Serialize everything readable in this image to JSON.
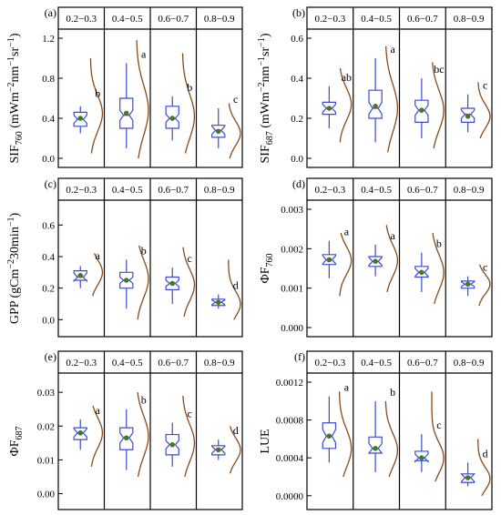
{
  "chart_data": [
    {
      "panel": "(a)",
      "type": "boxplot",
      "ylabel": {
        "main": "SIF",
        "sub": "760",
        "rest": " (mWm",
        "sup1": "−2",
        "mid": "nm",
        "sup2": "−1",
        "end": "sr",
        "sup3": "−1",
        "close": ")"
      },
      "ylim": [
        0.0,
        1.2
      ],
      "yticks": [
        0.0,
        0.4,
        0.8,
        1.2
      ],
      "tick_labels": [
        "0.0",
        "0.4",
        "0.8",
        "1.2"
      ],
      "groups": [
        "0.2−0.3",
        "0.4−0.5",
        "0.6−0.7",
        "0.8−0.9"
      ],
      "letters": [
        "b",
        "a",
        "b",
        "c"
      ],
      "stats": [
        {
          "min": 0.25,
          "q1": 0.32,
          "median": 0.39,
          "q3": 0.46,
          "max": 0.52,
          "mean": 0.4,
          "notch": 0.04
        },
        {
          "min": 0.1,
          "q1": 0.3,
          "median": 0.43,
          "q3": 0.6,
          "max": 0.95,
          "mean": 0.45,
          "notch": 0.05
        },
        {
          "min": 0.18,
          "q1": 0.3,
          "median": 0.4,
          "q3": 0.52,
          "max": 0.62,
          "mean": 0.4,
          "notch": 0.04
        },
        {
          "min": 0.1,
          "q1": 0.21,
          "median": 0.28,
          "q3": 0.33,
          "max": 0.5,
          "mean": 0.27,
          "notch": 0.04
        }
      ],
      "density": [
        {
          "from": 0.05,
          "to": 1.0,
          "mode": 0.45,
          "spread": 0.18
        },
        {
          "from": 0.0,
          "to": 1.18,
          "mode": 0.48,
          "spread": 0.25
        },
        {
          "from": 0.05,
          "to": 1.05,
          "mode": 0.42,
          "spread": 0.22
        },
        {
          "from": 0.0,
          "to": 0.55,
          "mode": 0.25,
          "spread": 0.12
        }
      ]
    },
    {
      "panel": "(b)",
      "type": "boxplot",
      "ylabel": {
        "main": "SIF",
        "sub": "687",
        "rest": " (mWm",
        "sup1": "−2",
        "mid": "nm",
        "sup2": "−1",
        "end": "sr",
        "sup3": "−1",
        "close": ")"
      },
      "ylim": [
        0.0,
        0.6
      ],
      "yticks": [
        0.0,
        0.2,
        0.4,
        0.6
      ],
      "tick_labels": [
        "0.0",
        "0.2",
        "0.4",
        "0.6"
      ],
      "groups": [
        "0.2−0.3",
        "0.4−0.5",
        "0.6−0.7",
        "0.8−0.9"
      ],
      "letters": [
        "ab",
        "a",
        "bc",
        "c"
      ],
      "stats": [
        {
          "min": 0.15,
          "q1": 0.22,
          "median": 0.25,
          "q3": 0.28,
          "max": 0.36,
          "mean": 0.25,
          "notch": 0.02
        },
        {
          "min": 0.08,
          "q1": 0.2,
          "median": 0.25,
          "q3": 0.34,
          "max": 0.5,
          "mean": 0.26,
          "notch": 0.03
        },
        {
          "min": 0.1,
          "q1": 0.18,
          "median": 0.24,
          "q3": 0.29,
          "max": 0.4,
          "mean": 0.24,
          "notch": 0.025
        },
        {
          "min": 0.13,
          "q1": 0.18,
          "median": 0.22,
          "q3": 0.25,
          "max": 0.32,
          "mean": 0.21,
          "notch": 0.02
        }
      ],
      "density": [
        {
          "from": 0.08,
          "to": 0.45,
          "mode": 0.27,
          "spread": 0.08
        },
        {
          "from": 0.03,
          "to": 0.56,
          "mode": 0.25,
          "spread": 0.12
        },
        {
          "from": 0.05,
          "to": 0.48,
          "mode": 0.24,
          "spread": 0.1
        },
        {
          "from": 0.1,
          "to": 0.38,
          "mode": 0.21,
          "spread": 0.06
        }
      ]
    },
    {
      "panel": "(c)",
      "type": "boxplot",
      "ylabel": {
        "main": "GPP (gCm",
        "sup1": "−2",
        "mid": "30min",
        "sup2": "−1",
        "close": ")"
      },
      "ylim": [
        -0.05,
        0.7
      ],
      "yticks": [
        0.0,
        0.2,
        0.4,
        0.6
      ],
      "tick_labels": [
        "0.0",
        "0.2",
        "0.4",
        "0.6"
      ],
      "groups": [
        "0.2−0.3",
        "0.4−0.5",
        "0.6−0.7",
        "0.8−0.9"
      ],
      "letters": [
        "a",
        "b",
        "c",
        "d"
      ],
      "stats": [
        {
          "min": 0.2,
          "q1": 0.25,
          "median": 0.27,
          "q3": 0.31,
          "max": 0.34,
          "mean": 0.28,
          "notch": 0.025
        },
        {
          "min": 0.07,
          "q1": 0.2,
          "median": 0.25,
          "q3": 0.3,
          "max": 0.38,
          "mean": 0.25,
          "notch": 0.02
        },
        {
          "min": 0.1,
          "q1": 0.19,
          "median": 0.23,
          "q3": 0.27,
          "max": 0.33,
          "mean": 0.23,
          "notch": 0.02
        },
        {
          "min": 0.07,
          "q1": 0.09,
          "median": 0.11,
          "q3": 0.13,
          "max": 0.16,
          "mean": 0.11,
          "notch": 0.015
        }
      ],
      "density": [
        {
          "from": 0.15,
          "to": 0.42,
          "mode": 0.3,
          "spread": 0.08
        },
        {
          "from": 0.0,
          "to": 0.47,
          "mode": 0.26,
          "spread": 0.12
        },
        {
          "from": 0.02,
          "to": 0.46,
          "mode": 0.22,
          "spread": 0.1
        },
        {
          "from": 0.0,
          "to": 0.38,
          "mode": 0.1,
          "spread": 0.08
        }
      ]
    },
    {
      "panel": "(d)",
      "type": "boxplot",
      "ylabel": {
        "main": "ΦF",
        "sub": "760"
      },
      "ylim": [
        0.0,
        0.003
      ],
      "yticks": [
        0.0,
        0.001,
        0.002,
        0.003
      ],
      "tick_labels": [
        "0.000",
        "0.001",
        "0.002",
        "0.003"
      ],
      "groups": [
        "0.2−0.3",
        "0.4−0.5",
        "0.6−0.7",
        "0.8−0.9"
      ],
      "letters": [
        "a",
        "a",
        "b",
        "c"
      ],
      "stats": [
        {
          "min": 0.00125,
          "q1": 0.0016,
          "median": 0.00172,
          "q3": 0.00185,
          "max": 0.0022,
          "mean": 0.00172,
          "notch": 0.0001
        },
        {
          "min": 0.0013,
          "q1": 0.00155,
          "median": 0.00168,
          "q3": 0.0018,
          "max": 0.0021,
          "mean": 0.00168,
          "notch": 0.0001
        },
        {
          "min": 0.0009,
          "q1": 0.00128,
          "median": 0.0014,
          "q3": 0.00155,
          "max": 0.0019,
          "mean": 0.0014,
          "notch": 0.0001
        },
        {
          "min": 0.0008,
          "q1": 0.001,
          "median": 0.0011,
          "q3": 0.00118,
          "max": 0.0013,
          "mean": 0.0011,
          "notch": 6e-05
        }
      ],
      "density": [
        {
          "from": 0.0008,
          "to": 0.0024,
          "mode": 0.0017,
          "spread": 0.00035
        },
        {
          "from": 0.0009,
          "to": 0.0026,
          "mode": 0.0017,
          "spread": 0.0004
        },
        {
          "from": 0.0006,
          "to": 0.0024,
          "mode": 0.0014,
          "spread": 0.00045
        },
        {
          "from": 0.00055,
          "to": 0.0016,
          "mode": 0.0011,
          "spread": 0.00025
        }
      ]
    },
    {
      "panel": "(e)",
      "type": "boxplot",
      "ylabel": {
        "main": "ΦF",
        "sub": "687"
      },
      "ylim": [
        -0.002,
        0.033
      ],
      "yticks": [
        0.0,
        0.01,
        0.02,
        0.03
      ],
      "tick_labels": [
        "0.00",
        "0.01",
        "0.02",
        "0.03"
      ],
      "groups": [
        "0.2−0.3",
        "0.4−0.5",
        "0.6−0.7",
        "0.8−0.9"
      ],
      "letters": [
        "a",
        "b",
        "c",
        "d"
      ],
      "stats": [
        {
          "min": 0.013,
          "q1": 0.016,
          "median": 0.018,
          "q3": 0.0195,
          "max": 0.022,
          "mean": 0.018,
          "notch": 0.0012
        },
        {
          "min": 0.007,
          "q1": 0.013,
          "median": 0.0165,
          "q3": 0.0195,
          "max": 0.025,
          "mean": 0.0165,
          "notch": 0.0015
        },
        {
          "min": 0.008,
          "q1": 0.0115,
          "median": 0.0145,
          "q3": 0.0175,
          "max": 0.021,
          "mean": 0.0145,
          "notch": 0.0012
        },
        {
          "min": 0.01,
          "q1": 0.0115,
          "median": 0.013,
          "q3": 0.0142,
          "max": 0.016,
          "mean": 0.013,
          "notch": 0.001
        }
      ],
      "density": [
        {
          "from": 0.008,
          "to": 0.026,
          "mode": 0.018,
          "spread": 0.0045
        },
        {
          "from": 0.005,
          "to": 0.03,
          "mode": 0.017,
          "spread": 0.006
        },
        {
          "from": 0.005,
          "to": 0.029,
          "mode": 0.015,
          "spread": 0.0055
        },
        {
          "from": 0.006,
          "to": 0.02,
          "mode": 0.013,
          "spread": 0.0035
        }
      ]
    },
    {
      "panel": "(f)",
      "type": "boxplot",
      "ylabel": {
        "main": "LUE"
      },
      "ylim": [
        -5e-05,
        0.0012
      ],
      "yticks": [
        0.0,
        0.0004,
        0.0008,
        0.0012
      ],
      "tick_labels": [
        "0.0000",
        "0.0004",
        "0.0008",
        "0.0012"
      ],
      "groups": [
        "0.2−0.3",
        "0.4−0.5",
        "0.6−0.7",
        "0.8−0.9"
      ],
      "letters": [
        "a",
        "b",
        "c",
        "d"
      ],
      "stats": [
        {
          "min": 0.00035,
          "q1": 0.0005,
          "median": 0.00063,
          "q3": 0.00077,
          "max": 0.00105,
          "mean": 0.00063,
          "notch": 7e-05
        },
        {
          "min": 0.00025,
          "q1": 0.00045,
          "median": 0.0005,
          "q3": 0.00062,
          "max": 0.001,
          "mean": 0.0005,
          "notch": 5e-05
        },
        {
          "min": 0.00025,
          "q1": 0.00037,
          "median": 0.0004,
          "q3": 0.00047,
          "max": 0.00065,
          "mean": 0.0004,
          "notch": 4e-05
        },
        {
          "min": 0.0001,
          "q1": 0.00014,
          "median": 0.00019,
          "q3": 0.00023,
          "max": 0.00035,
          "mean": 0.00019,
          "notch": 4e-05
        }
      ],
      "density": [
        {
          "from": 0.0002,
          "to": 0.0011,
          "mode": 0.0005,
          "spread": 0.0002
        },
        {
          "from": 0.0002,
          "to": 0.001,
          "mode": 0.00048,
          "spread": 0.00018
        },
        {
          "from": 0.00015,
          "to": 0.0011,
          "mode": 0.0004,
          "spread": 0.00016
        },
        {
          "from": 0.0,
          "to": 0.0006,
          "mode": 0.00018,
          "spread": 0.00012
        }
      ]
    }
  ],
  "colors": {
    "box": "#3a4bd6",
    "density": "#8b4a14",
    "mean": "#3f7a2a",
    "median": "#e0147a",
    "frame": "#000000"
  }
}
